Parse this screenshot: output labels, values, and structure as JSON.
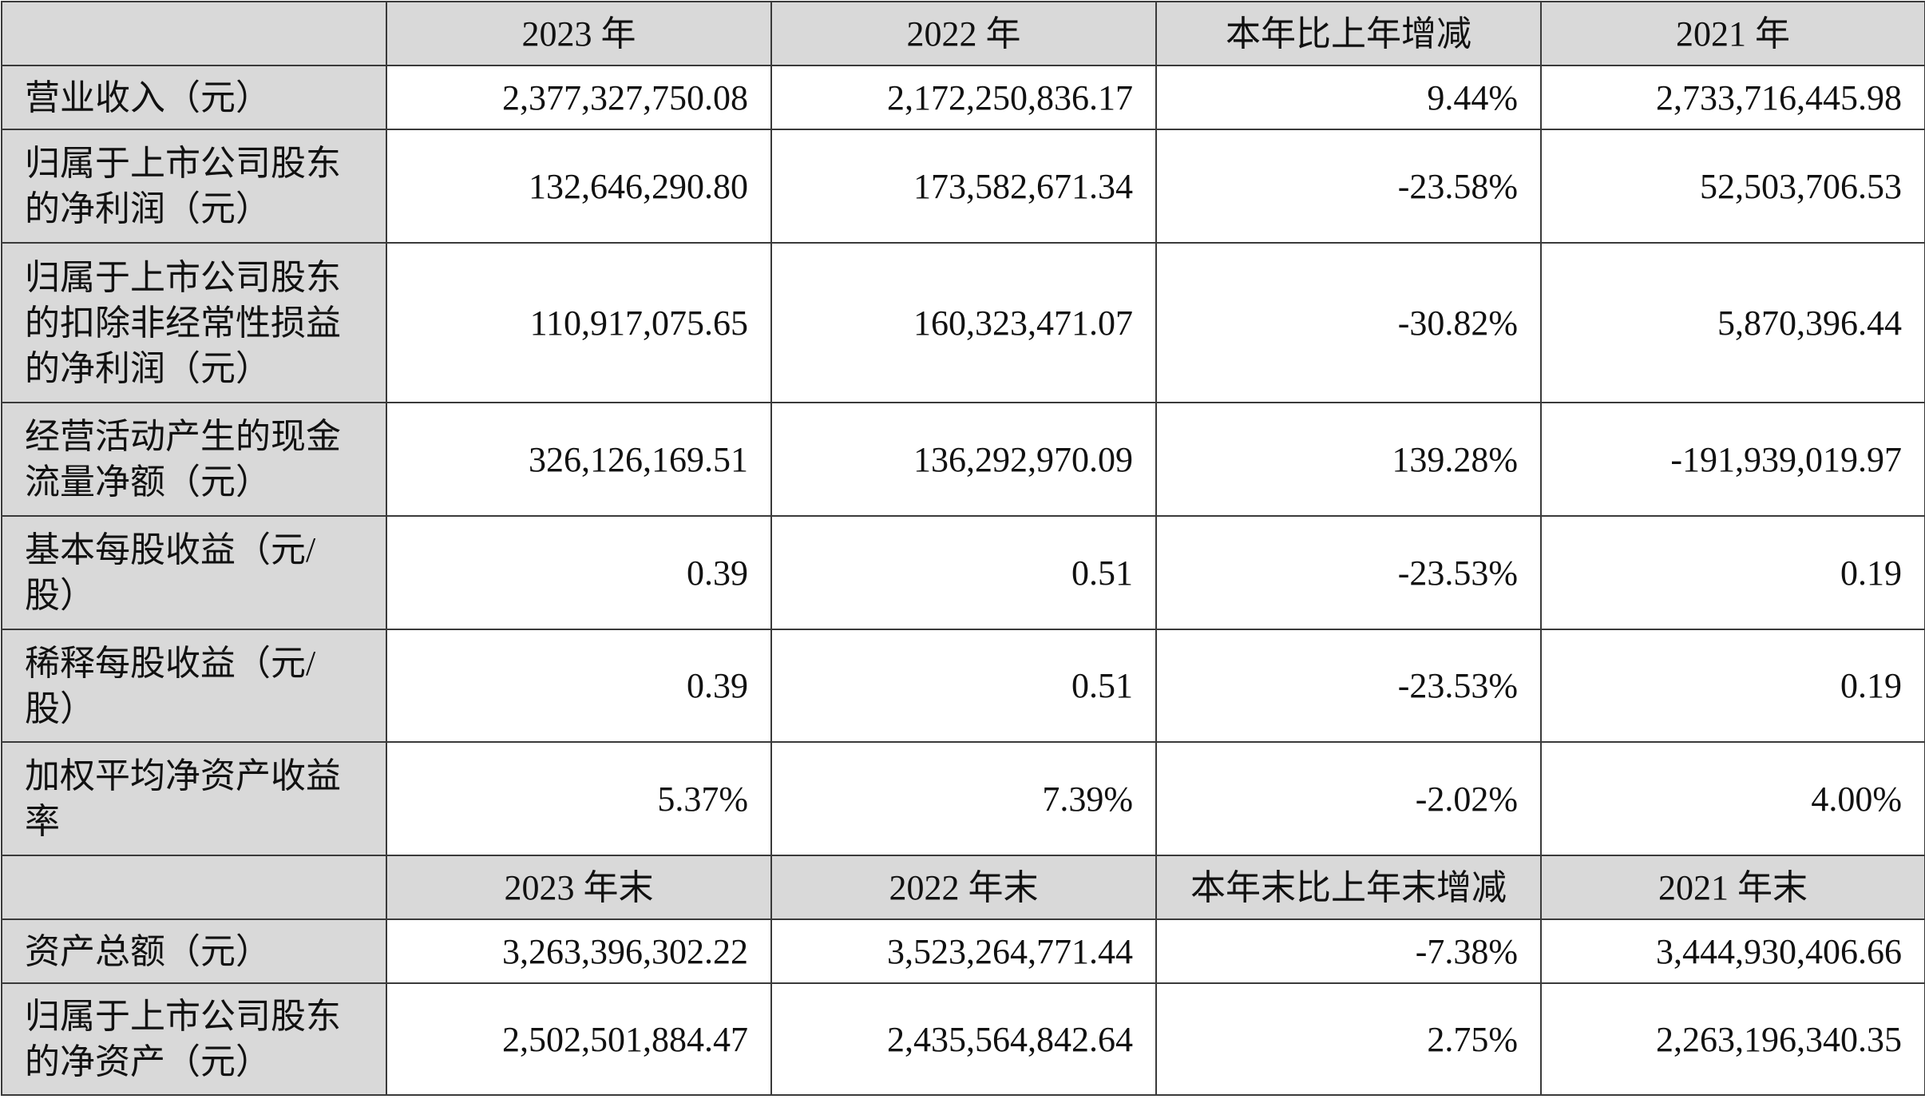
{
  "header1": {
    "c1": "2023 年",
    "c2": "2022 年",
    "c3": "本年比上年增减",
    "c4": "2021 年"
  },
  "rows1": [
    {
      "label": "营业收入（元）",
      "v2023": "2,377,327,750.08",
      "v2022": "2,172,250,836.17",
      "change": "9.44%",
      "v2021": "2,733,716,445.98"
    },
    {
      "label": "归属于上市公司股东的净利润（元）",
      "v2023": "132,646,290.80",
      "v2022": "173,582,671.34",
      "change": "-23.58%",
      "v2021": "52,503,706.53"
    },
    {
      "label": "归属于上市公司股东的扣除非经常性损益的净利润（元）",
      "v2023": "110,917,075.65",
      "v2022": "160,323,471.07",
      "change": "-30.82%",
      "v2021": "5,870,396.44"
    },
    {
      "label": "经营活动产生的现金流量净额（元）",
      "v2023": "326,126,169.51",
      "v2022": "136,292,970.09",
      "change": "139.28%",
      "v2021": "-191,939,019.97"
    },
    {
      "label": "基本每股收益（元/股）",
      "v2023": "0.39",
      "v2022": "0.51",
      "change": "-23.53%",
      "v2021": "0.19"
    },
    {
      "label": "稀释每股收益（元/股）",
      "v2023": "0.39",
      "v2022": "0.51",
      "change": "-23.53%",
      "v2021": "0.19"
    },
    {
      "label": "加权平均净资产收益率",
      "v2023": "5.37%",
      "v2022": "7.39%",
      "change": "-2.02%",
      "v2021": "4.00%"
    }
  ],
  "header2": {
    "c1": "2023 年末",
    "c2": "2022 年末",
    "c3": "本年末比上年末增减",
    "c4": "2021 年末"
  },
  "rows2": [
    {
      "label": "资产总额（元）",
      "v2023": "3,263,396,302.22",
      "v2022": "3,523,264,771.44",
      "change": "-7.38%",
      "v2021": "3,444,930,406.66"
    },
    {
      "label": "归属于上市公司股东的净资产（元）",
      "v2023": "2,502,501,884.47",
      "v2022": "2,435,564,842.64",
      "change": "2.75%",
      "v2021": "2,263,196,340.35"
    }
  ]
}
